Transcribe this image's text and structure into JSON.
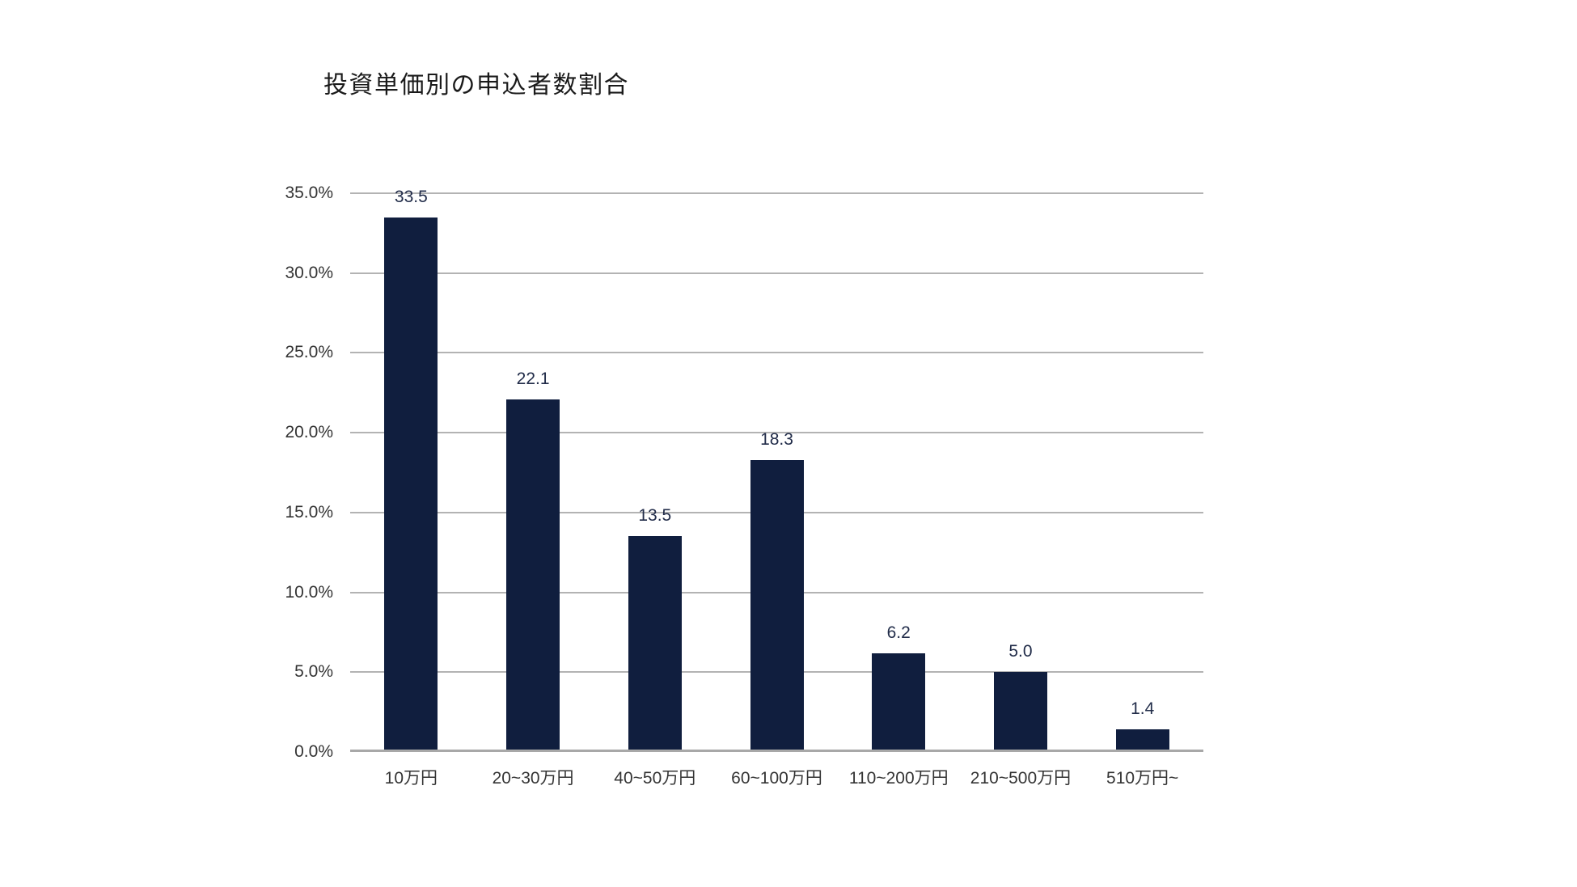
{
  "chart": {
    "title": "投資単価別の申込者数割合"
  },
  "chart_data": {
    "type": "bar",
    "title": "投資単価別の申込者数割合",
    "categories": [
      "10万円",
      "20~30万円",
      "40~50万円",
      "60~100万円",
      "110~200万円",
      "210~500万円",
      "510万円~"
    ],
    "values": [
      33.5,
      22.1,
      13.5,
      18.3,
      6.2,
      5.0,
      1.4
    ],
    "value_labels": [
      "33.5",
      "22.1",
      "13.5",
      "18.3",
      "6.2",
      "5.0",
      "1.4"
    ],
    "xlabel": "",
    "ylabel": "",
    "ylim": [
      0,
      35
    ],
    "ytick_step": 5,
    "y_tick_labels": [
      "35.0%",
      "30.0%",
      "25.0%",
      "20.0%",
      "15.0%",
      "10.0%",
      "5.0%",
      "0.0%"
    ],
    "grid": true,
    "legend_position": "none",
    "colors": {
      "bar": "#101e3e",
      "value_label": "#212c49",
      "axis_tick_label": "#343434",
      "gridline": "#b3b3b3",
      "baseline": "#a8a8a8",
      "background": "#ffffff"
    }
  }
}
